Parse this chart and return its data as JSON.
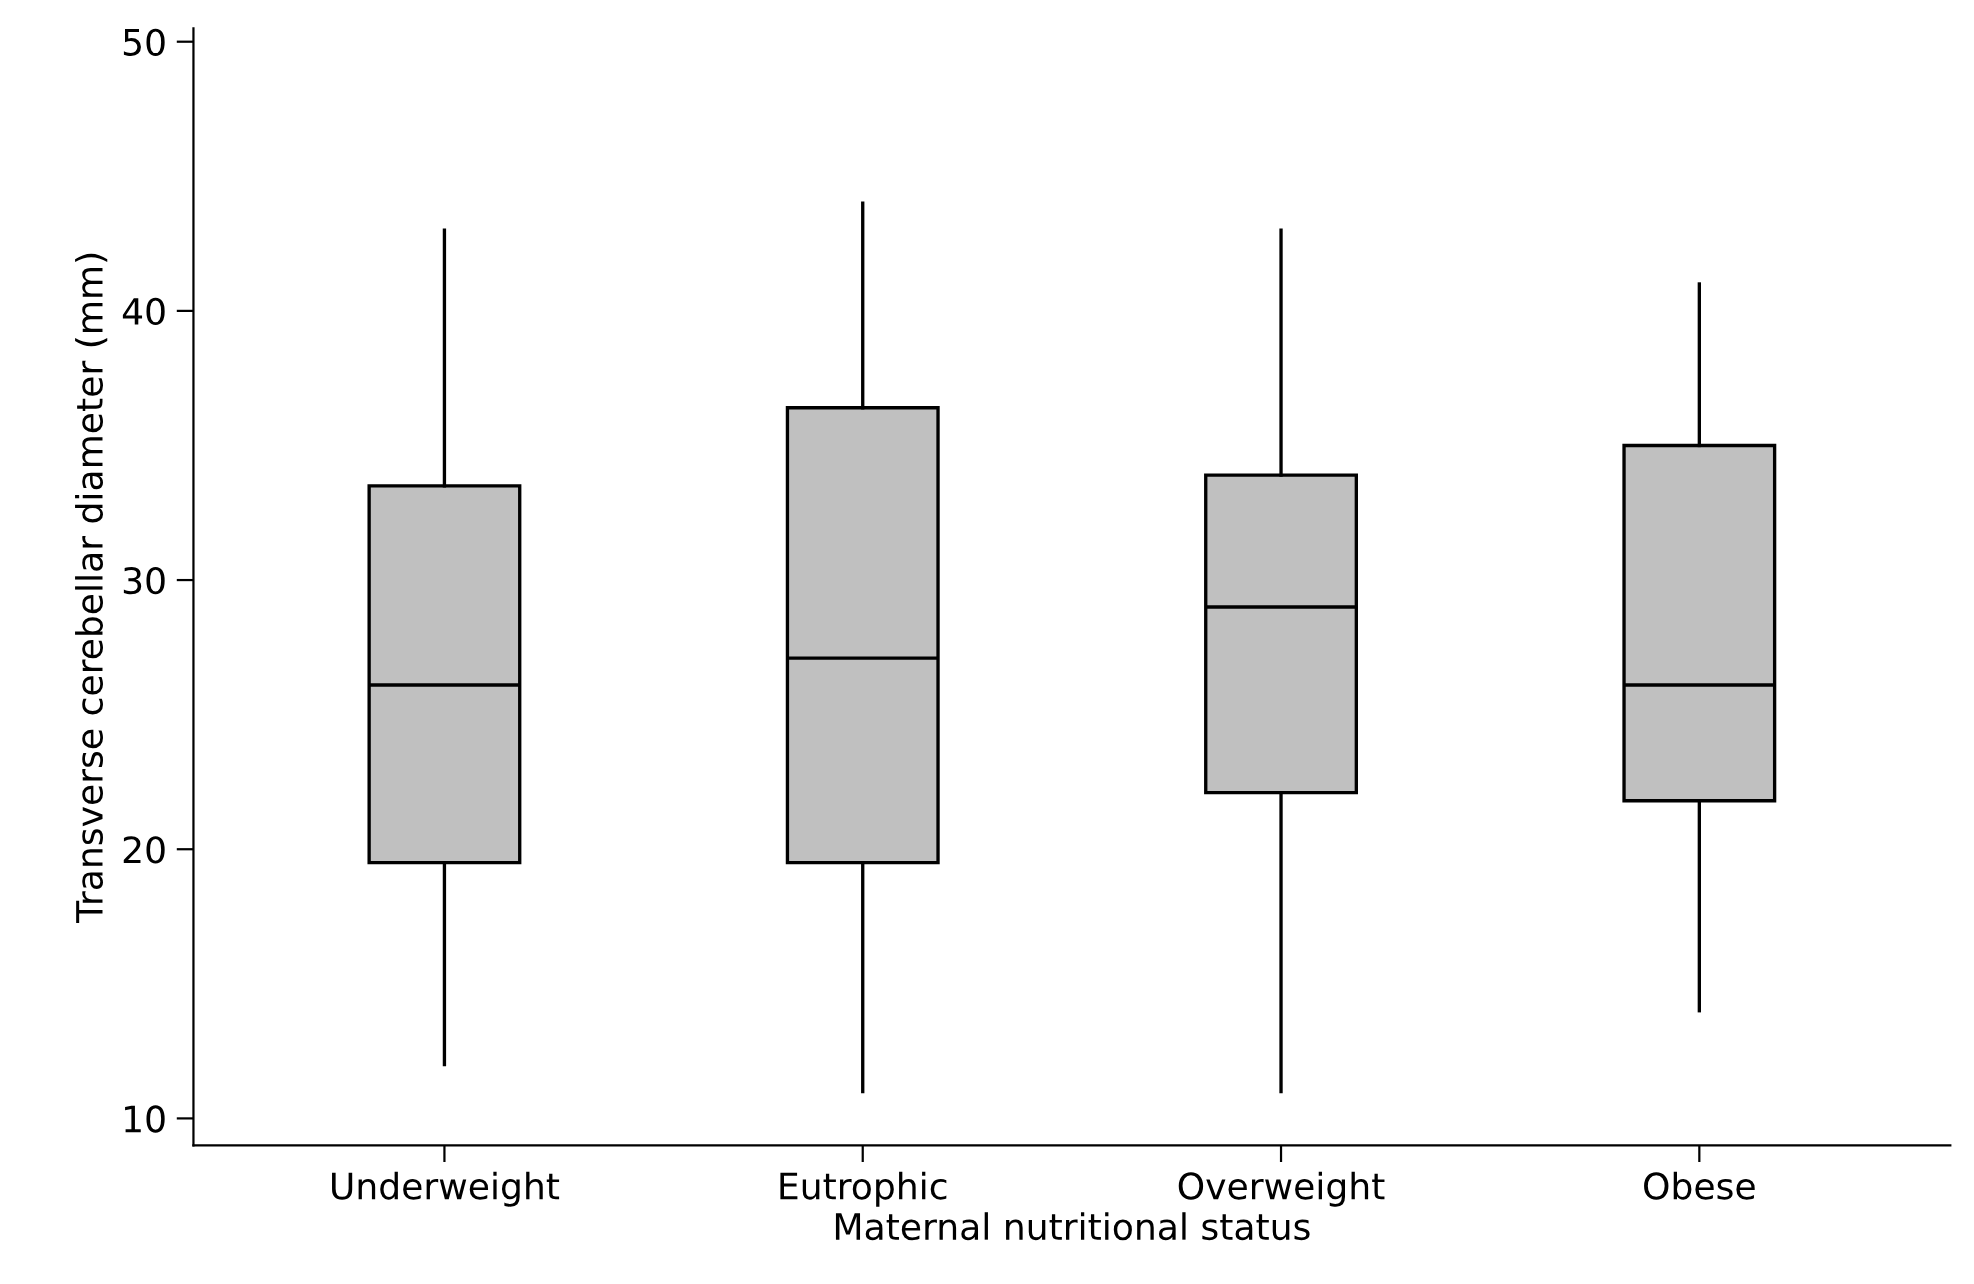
{
  "chart_data": {
    "type": "box",
    "xlabel": "Maternal nutritional status",
    "ylabel": "Transverse cerebellar diameter (mm)",
    "categories": [
      "Underweight",
      "Eutrophic",
      "Overweight",
      "Obese"
    ],
    "boxes": [
      {
        "low": 12,
        "q1": 19.5,
        "median": 26.1,
        "q3": 33.5,
        "high": 43
      },
      {
        "low": 11,
        "q1": 19.5,
        "median": 27.1,
        "q3": 36.4,
        "high": 44
      },
      {
        "low": 11,
        "q1": 22.1,
        "median": 29,
        "q3": 33.9,
        "high": 43
      },
      {
        "low": 14,
        "q1": 21.8,
        "median": 26.1,
        "q3": 35,
        "high": 41
      }
    ],
    "color": "#c0c0c0",
    "ylim": [
      9,
      50.5
    ],
    "yticks": [
      10,
      20,
      30,
      40,
      50
    ],
    "grid": false
  }
}
